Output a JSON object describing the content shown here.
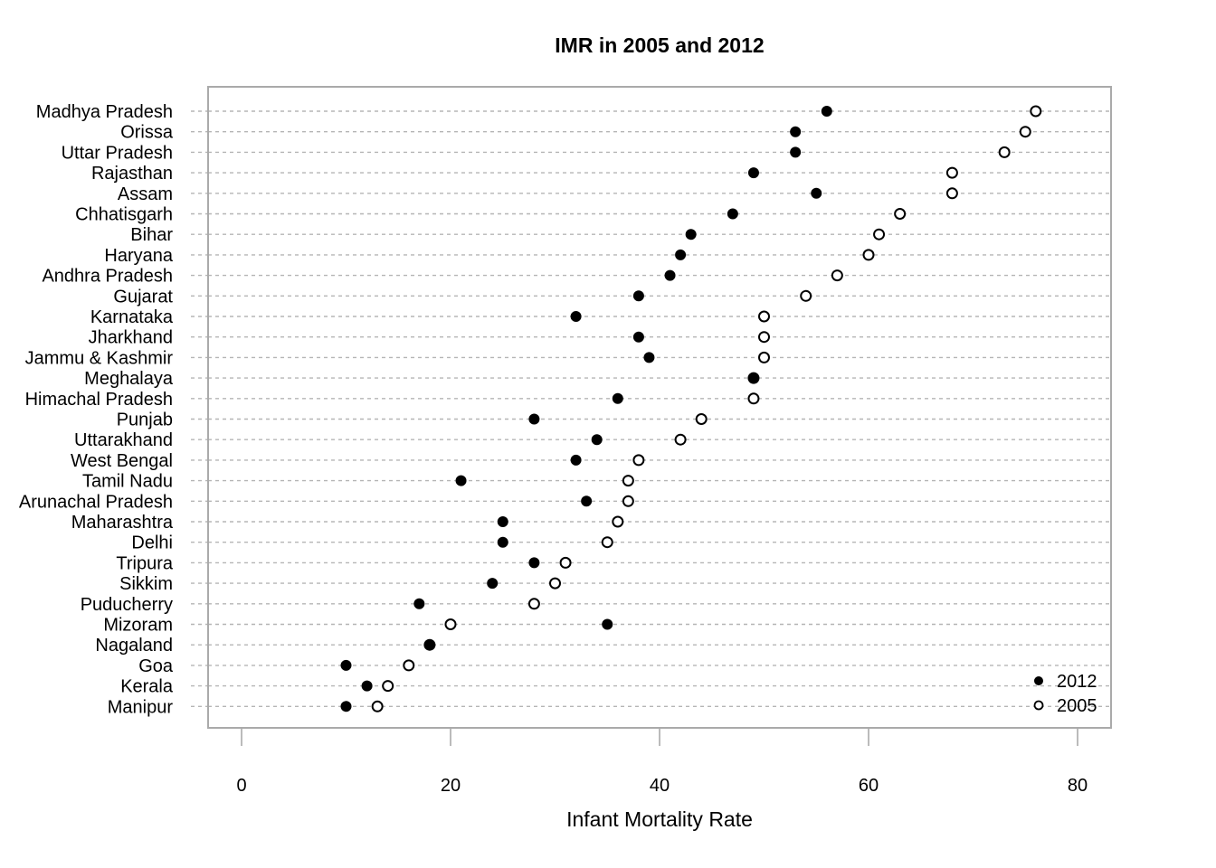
{
  "chart_data": {
    "type": "scatter",
    "subtype": "dot-plot",
    "title": "IMR in 2005 and 2012",
    "xlabel": "Infant Mortality Rate",
    "ylabel": "",
    "xlim": [
      0,
      80
    ],
    "xticks": [
      0,
      20,
      40,
      60,
      80
    ],
    "grid": "dashed horizontal lines per category",
    "legend_position": "bottom-right",
    "categories": [
      "Madhya Pradesh",
      "Orissa",
      "Uttar Pradesh",
      "Rajasthan",
      "Assam",
      "Chhatisgarh",
      "Bihar",
      "Haryana",
      "Andhra Pradesh",
      "Gujarat",
      "Karnataka",
      "Jharkhand",
      "Jammu & Kashmir",
      "Meghalaya",
      "Himachal Pradesh",
      "Punjab",
      "Uttarakhand",
      "West Bengal",
      "Tamil Nadu",
      "Arunachal Pradesh",
      "Maharashtra",
      "Delhi",
      "Tripura",
      "Sikkim",
      "Puducherry",
      "Mizoram",
      "Nagaland",
      "Goa",
      "Kerala",
      "Manipur"
    ],
    "series": [
      {
        "name": "2012",
        "marker": "filled-circle",
        "values": [
          56,
          53,
          53,
          49,
          55,
          47,
          43,
          42,
          41,
          38,
          32,
          38,
          39,
          49,
          36,
          28,
          34,
          32,
          21,
          33,
          25,
          25,
          28,
          24,
          17,
          35,
          18,
          10,
          12,
          10
        ]
      },
      {
        "name": "2005",
        "marker": "open-circle",
        "values": [
          76,
          75,
          73,
          68,
          68,
          63,
          61,
          60,
          57,
          54,
          50,
          50,
          50,
          49,
          49,
          44,
          42,
          38,
          37,
          37,
          36,
          35,
          31,
          30,
          28,
          20,
          18,
          16,
          14,
          13
        ]
      }
    ]
  }
}
